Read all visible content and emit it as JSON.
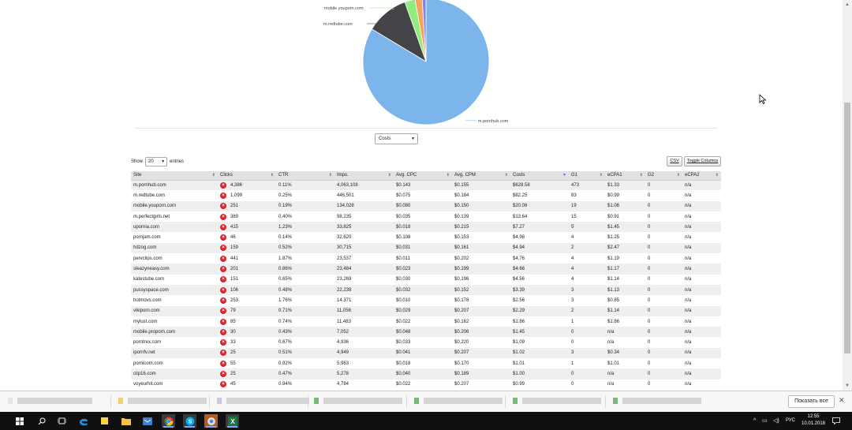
{
  "pie": {
    "slices": [
      {
        "name": "m.pornhub.com",
        "value": 628.58,
        "color": "#7cb5ec"
      },
      {
        "name": "m.redtube.com",
        "value": 82.25,
        "color": "#434348"
      },
      {
        "name": "mobile.youporn.com",
        "value": 20.08,
        "color": "#90ed7d"
      },
      {
        "name": "m.perfectgirls.net",
        "value": 13.64,
        "color": "#f7a35c"
      },
      {
        "name": "upornia.com",
        "value": 7.27,
        "color": "#8085e9"
      }
    ],
    "labels": {
      "ph": "m.pornhub.com",
      "rt": "m.redtube.com",
      "yp": "mobile.youporn.com"
    }
  },
  "metric_select": {
    "value": "Costs"
  },
  "length": {
    "show": "Show",
    "value": "20",
    "entries": "entries"
  },
  "buttons": {
    "csv": "CSV",
    "toggle": "Toggle Columns"
  },
  "table": {
    "headers": [
      "Site",
      "Clicks",
      "CTR",
      "Imps.",
      "Avg. CPC",
      "Avg. CPM",
      "Costs",
      "G1",
      "eCPA1",
      "G2",
      "eCPA2"
    ],
    "rows": [
      [
        "m.pornhub.com",
        "4,386",
        "0.11%",
        "4,063,108",
        "$0.143",
        "$0.155",
        "$628.58",
        "473",
        "$1.33",
        "0",
        "n/a"
      ],
      [
        "m.redtube.com",
        "1,099",
        "0.25%",
        "446,501",
        "$0.075",
        "$0.184",
        "$82.25",
        "83",
        "$0.99",
        "0",
        "n/a"
      ],
      [
        "mobile.youporn.com",
        "251",
        "0.19%",
        "134,028",
        "$0.080",
        "$0.150",
        "$20.08",
        "19",
        "$1.06",
        "0",
        "n/a"
      ],
      [
        "m.perfectgirls.net",
        "389",
        "0.40%",
        "98,235",
        "$0.035",
        "$0.139",
        "$13.64",
        "15",
        "$0.91",
        "0",
        "n/a"
      ],
      [
        "upornia.com",
        "415",
        "1.23%",
        "33,825",
        "$0.018",
        "$0.215",
        "$7.27",
        "5",
        "$1.45",
        "0",
        "n/a"
      ],
      [
        "pornjam.com",
        "46",
        "0.14%",
        "32,620",
        "$0.108",
        "$0.153",
        "$4.98",
        "4",
        "$1.25",
        "0",
        "n/a"
      ],
      [
        "hdzog.com",
        "159",
        "0.52%",
        "30,715",
        "$0.031",
        "$0.161",
        "$4.94",
        "2",
        "$2.47",
        "0",
        "n/a"
      ],
      [
        "pervclips.com",
        "441",
        "1.87%",
        "23,537",
        "$0.011",
        "$0.202",
        "$4.76",
        "4",
        "$1.19",
        "0",
        "n/a"
      ],
      [
        "sleazyneasy.com",
        "201",
        "0.86%",
        "23,484",
        "$0.023",
        "$0.199",
        "$4.66",
        "4",
        "$1.17",
        "0",
        "n/a"
      ],
      [
        "katestube.com",
        "151",
        "0.65%",
        "23,269",
        "$0.030",
        "$0.196",
        "$4.56",
        "4",
        "$1.14",
        "0",
        "n/a"
      ],
      [
        "pussyspace.com",
        "106",
        "0.48%",
        "22,238",
        "$0.032",
        "$0.152",
        "$3.39",
        "3",
        "$1.13",
        "0",
        "n/a"
      ],
      [
        "hotmovs.com",
        "253",
        "1.76%",
        "14,371",
        "$0.010",
        "$0.178",
        "$2.56",
        "3",
        "$0.85",
        "0",
        "n/a"
      ],
      [
        "vikiporn.com",
        "79",
        "0.71%",
        "11,056",
        "$0.029",
        "$0.207",
        "$2.29",
        "2",
        "$1.14",
        "0",
        "n/a"
      ],
      [
        "mylust.com",
        "85",
        "0.74%",
        "11,483",
        "$0.022",
        "$0.162",
        "$1.86",
        "1",
        "$1.86",
        "0",
        "n/a"
      ],
      [
        "mobile.proporn.com",
        "30",
        "0.43%",
        "7,052",
        "$0.048",
        "$0.206",
        "$1.45",
        "0",
        "n/a",
        "0",
        "n/a"
      ],
      [
        "porntrex.com",
        "33",
        "0.67%",
        "4,936",
        "$0.033",
        "$0.220",
        "$1.09",
        "0",
        "n/a",
        "0",
        "n/a"
      ],
      [
        "ipornfv.net",
        "25",
        "0.51%",
        "4,949",
        "$0.041",
        "$0.207",
        "$1.02",
        "3",
        "$0.34",
        "0",
        "n/a"
      ],
      [
        "pornicom.com",
        "55",
        "0.92%",
        "5,963",
        "$0.018",
        "$0.170",
        "$1.01",
        "1",
        "$1.01",
        "0",
        "n/a"
      ],
      [
        "clip16.com",
        "25",
        "0.47%",
        "5,278",
        "$0.040",
        "$0.189",
        "$1.00",
        "0",
        "n/a",
        "0",
        "n/a"
      ],
      [
        "voyeurhit.com",
        "45",
        "0.94%",
        "4,784",
        "$0.022",
        "$0.207",
        "$0.99",
        "0",
        "n/a",
        "0",
        "n/a"
      ]
    ]
  },
  "downloads": {
    "show_all": "Показать все"
  },
  "taskbar": {
    "lang": "РУС",
    "time": "12:55",
    "date": "10.01.2018"
  },
  "colors": {
    "delete": "#d9262c",
    "sort_active": "#5b5bd6"
  }
}
